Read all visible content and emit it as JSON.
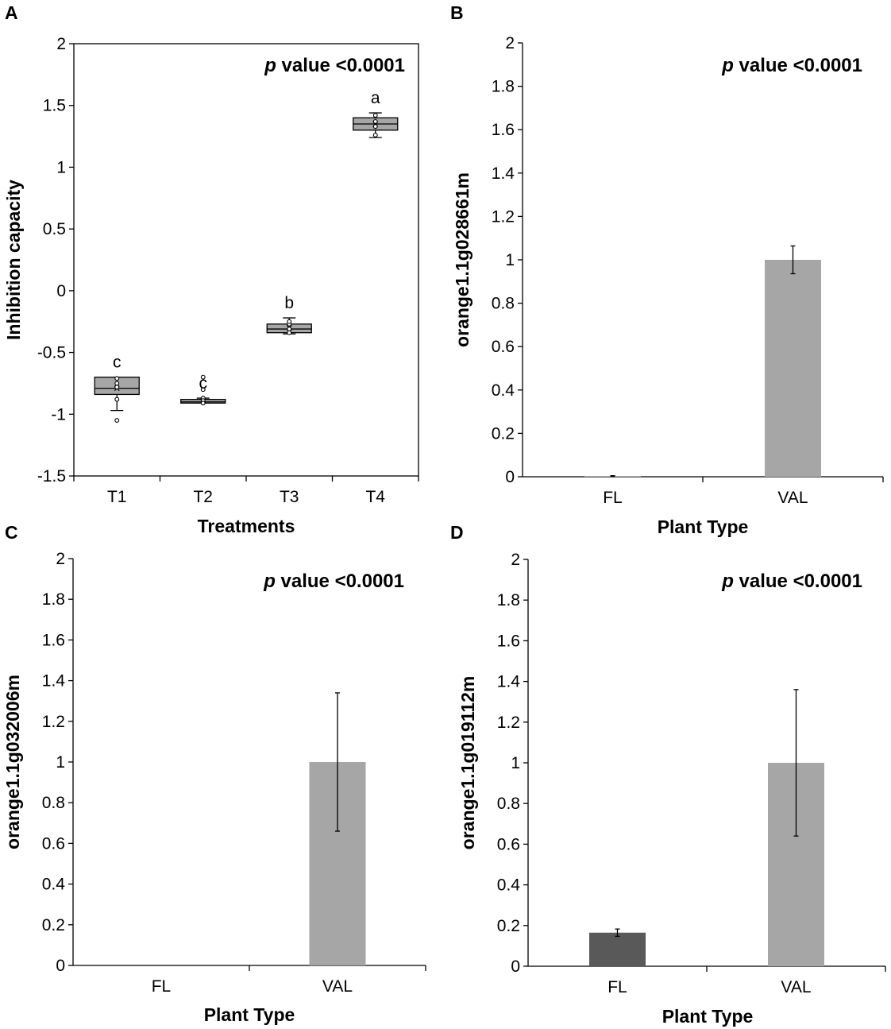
{
  "colors": {
    "bar_light": "#a6a6a6",
    "bar_dark": "#595959",
    "box_fill": "#a6a6a6",
    "axis": "#000000"
  },
  "chart_data": [
    {
      "panel": "A",
      "type": "box",
      "title": "",
      "xlabel": "Treatments",
      "ylabel": "Inhibition capacity",
      "ylim": [
        -1.5,
        2
      ],
      "yticks": [
        "2",
        "1.5",
        "1",
        "0.5",
        "0",
        "-0.5",
        "-1",
        "-1.5"
      ],
      "annotation": {
        "p": "p",
        "text": "value <0.0001"
      },
      "legend": "none",
      "categories": [
        "T1",
        "T2",
        "T3",
        "T4"
      ],
      "boxes": [
        {
          "label": "T1",
          "whisker_low": -0.97,
          "q1": -0.84,
          "median": -0.79,
          "mean": -0.79,
          "q3": -0.7,
          "whisker_high": -0.7,
          "points": [
            -1.05,
            -0.88,
            -0.78,
            -0.75,
            -0.71
          ],
          "group": "c"
        },
        {
          "label": "T2",
          "whisker_low": -0.91,
          "q1": -0.91,
          "median": -0.9,
          "mean": -0.89,
          "q3": -0.88,
          "whisker_high": -0.87,
          "points": [
            -0.7,
            -0.8,
            -0.87,
            -0.89,
            -0.91
          ],
          "group": "c"
        },
        {
          "label": "T3",
          "whisker_low": -0.35,
          "q1": -0.34,
          "median": -0.31,
          "mean": -0.3,
          "q3": -0.27,
          "whisker_high": -0.22,
          "points": [
            -0.34,
            -0.31,
            -0.27,
            -0.25
          ],
          "group": "b"
        },
        {
          "label": "T4",
          "whisker_low": 1.24,
          "q1": 1.3,
          "median": 1.35,
          "mean": 1.35,
          "q3": 1.4,
          "whisker_high": 1.44,
          "points": [
            1.26,
            1.33,
            1.37,
            1.42
          ],
          "group": "a"
        }
      ]
    },
    {
      "panel": "B",
      "type": "bar",
      "xlabel": "Plant Type",
      "ylabel": "orange1.1g028661m",
      "ylim": [
        0,
        2
      ],
      "yticks": [
        "2",
        "1.8",
        "1.6",
        "1.4",
        "1.2",
        "1",
        "0.8",
        "0.6",
        "0.4",
        "0.2",
        "0"
      ],
      "annotation": {
        "p": "p",
        "text": "value <0.0001"
      },
      "categories": [
        "FL",
        "VAL"
      ],
      "values": [
        0.003,
        1.0
      ],
      "errors": [
        0.002,
        0.064
      ],
      "legend": "none"
    },
    {
      "panel": "C",
      "type": "bar",
      "xlabel": "Plant Type",
      "ylabel": "orange1.1g032006m",
      "ylim": [
        0,
        2
      ],
      "yticks": [
        "2",
        "1.8",
        "1.6",
        "1.4",
        "1.2",
        "1",
        "0.8",
        "0.6",
        "0.4",
        "0.2",
        "0"
      ],
      "annotation": {
        "p": "p",
        "text": "value <0.0001"
      },
      "categories": [
        "FL",
        "VAL"
      ],
      "values": [
        0.0,
        1.0
      ],
      "errors": [
        0.0,
        0.34
      ],
      "legend": "none"
    },
    {
      "panel": "D",
      "type": "bar",
      "xlabel": "Plant Type",
      "ylabel": "orange1.1g019112m",
      "ylim": [
        0,
        2
      ],
      "yticks": [
        "2",
        "1.8",
        "1.6",
        "1.4",
        "1.2",
        "1",
        "0.8",
        "0.6",
        "0.4",
        "0.2",
        "0"
      ],
      "annotation": {
        "p": "p",
        "text": "value <0.0001"
      },
      "categories": [
        "FL",
        "VAL"
      ],
      "values": [
        0.165,
        1.0
      ],
      "errors": [
        0.018,
        0.36
      ],
      "legend": "none"
    }
  ]
}
